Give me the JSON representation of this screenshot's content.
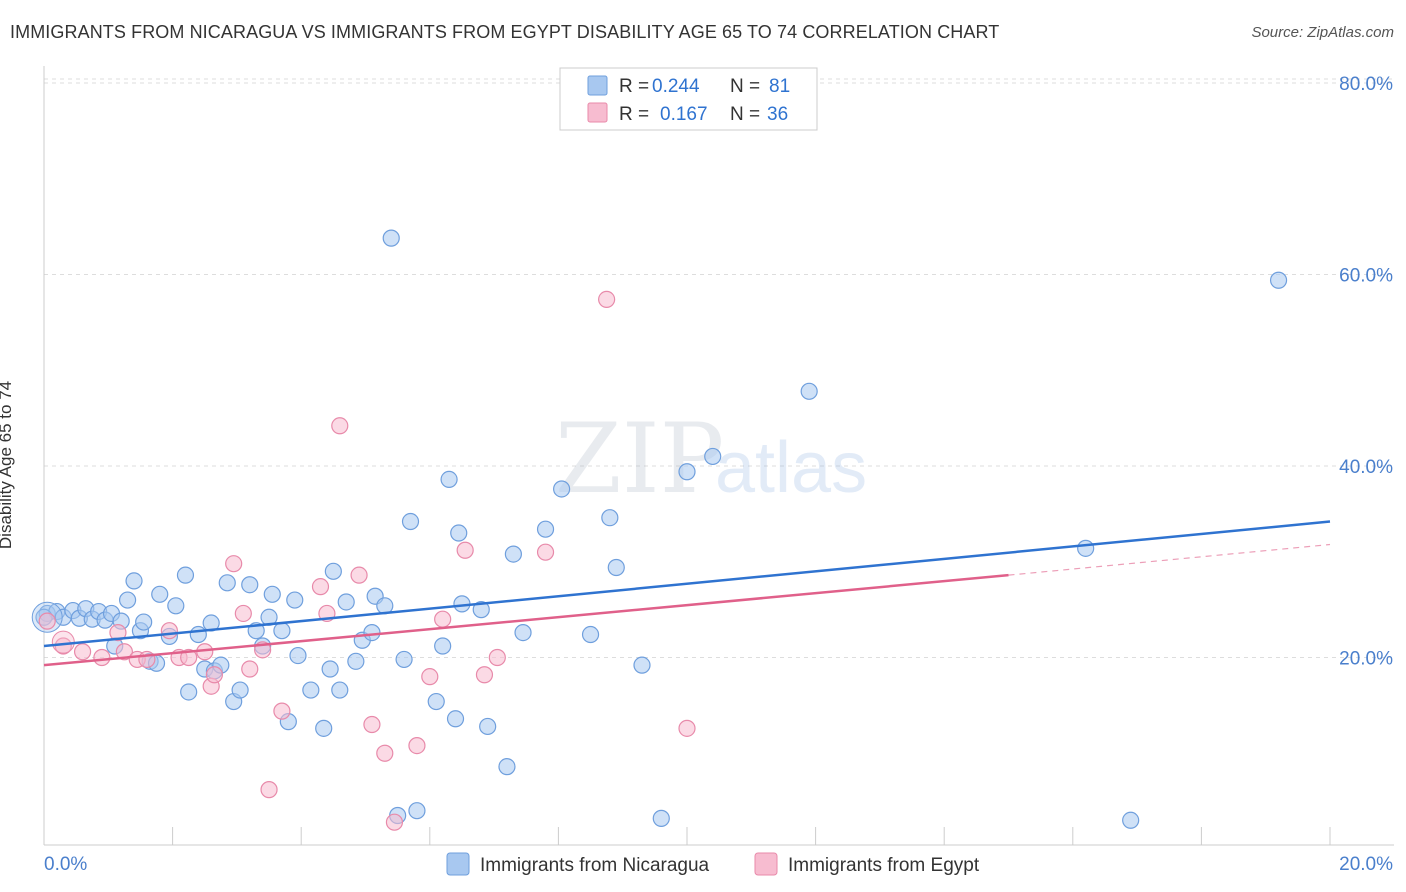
{
  "title": "IMMIGRANTS FROM NICARAGUA VS IMMIGRANTS FROM EGYPT DISABILITY AGE 65 TO 74 CORRELATION CHART",
  "source": "Source: ZipAtlas.com",
  "watermark": {
    "zip": "ZIP",
    "atlas": "atlas"
  },
  "colors": {
    "nicaragua_fill": "#a8c8f0",
    "nicaragua_stroke": "#6f9fdd",
    "nicaragua_line": "#2f73d0",
    "egypt_fill": "#f7bcd0",
    "egypt_stroke": "#e88aaa",
    "egypt_line": "#e0608a",
    "axis_text": "#4a7fcc",
    "grid": "#dddddd"
  },
  "legend": {
    "rows": [
      {
        "r_label": "R =",
        "r_value": "0.244",
        "n_label": "N =",
        "n_value": "81"
      },
      {
        "r_label": "R =",
        "r_value": "0.167",
        "n_label": "N =",
        "n_value": "36"
      }
    ]
  },
  "chart_data": {
    "type": "scatter",
    "title": "IMMIGRANTS FROM NICARAGUA VS IMMIGRANTS FROM EGYPT DISABILITY AGE 65 TO 74 CORRELATION CHART",
    "xlabel": "",
    "ylabel": "Disability Age 65 to 74",
    "xlim": [
      0,
      20
    ],
    "ylim": [
      0,
      80
    ],
    "x_tick_labels": [
      "0.0%",
      "20.0%"
    ],
    "y_ticks": [
      20,
      40,
      60,
      80
    ],
    "y_tick_labels": [
      "20.0%",
      "40.0%",
      "60.0%",
      "80.0%"
    ],
    "legend_position": "top-center",
    "bottom_legend": [
      "Immigrants from Nicaragua",
      "Immigrants from Egypt"
    ],
    "series": [
      {
        "name": "Immigrants from Nicaragua",
        "R": 0.244,
        "N": 81,
        "trend": {
          "x": [
            0,
            20
          ],
          "y": [
            21.2,
            34.2
          ]
        },
        "points": [
          [
            0.05,
            24.6
          ],
          [
            0.2,
            24.8
          ],
          [
            0.3,
            24.2
          ],
          [
            0.45,
            24.9
          ],
          [
            0.55,
            24.1
          ],
          [
            0.65,
            25.1
          ],
          [
            0.75,
            24.0
          ],
          [
            0.85,
            24.8
          ],
          [
            0.95,
            23.9
          ],
          [
            1.05,
            24.6
          ],
          [
            1.1,
            21.2
          ],
          [
            1.2,
            23.8
          ],
          [
            1.3,
            26.0
          ],
          [
            1.4,
            28.0
          ],
          [
            1.5,
            22.8
          ],
          [
            1.55,
            23.7
          ],
          [
            1.65,
            19.6
          ],
          [
            1.75,
            19.4
          ],
          [
            1.8,
            26.6
          ],
          [
            1.95,
            22.2
          ],
          [
            2.05,
            25.4
          ],
          [
            2.2,
            28.6
          ],
          [
            2.25,
            16.4
          ],
          [
            2.4,
            22.4
          ],
          [
            2.5,
            18.8
          ],
          [
            2.6,
            23.6
          ],
          [
            2.65,
            18.6
          ],
          [
            2.75,
            19.2
          ],
          [
            2.85,
            27.8
          ],
          [
            2.95,
            15.4
          ],
          [
            3.05,
            16.6
          ],
          [
            3.2,
            27.6
          ],
          [
            3.3,
            22.8
          ],
          [
            3.4,
            21.2
          ],
          [
            3.5,
            24.2
          ],
          [
            3.55,
            26.6
          ],
          [
            3.7,
            22.8
          ],
          [
            3.8,
            13.3
          ],
          [
            3.9,
            26.0
          ],
          [
            3.95,
            20.2
          ],
          [
            4.15,
            16.6
          ],
          [
            4.35,
            12.6
          ],
          [
            4.45,
            18.8
          ],
          [
            4.5,
            29.0
          ],
          [
            4.6,
            16.6
          ],
          [
            4.7,
            25.8
          ],
          [
            4.85,
            19.6
          ],
          [
            4.95,
            21.8
          ],
          [
            5.1,
            22.6
          ],
          [
            5.15,
            26.4
          ],
          [
            5.3,
            25.4
          ],
          [
            5.4,
            63.8
          ],
          [
            5.5,
            3.5
          ],
          [
            5.6,
            19.8
          ],
          [
            5.7,
            34.2
          ],
          [
            5.8,
            4.0
          ],
          [
            6.1,
            15.4
          ],
          [
            6.2,
            21.2
          ],
          [
            6.3,
            38.6
          ],
          [
            6.4,
            13.6
          ],
          [
            6.45,
            33.0
          ],
          [
            6.5,
            25.6
          ],
          [
            6.8,
            25.0
          ],
          [
            6.9,
            12.8
          ],
          [
            7.2,
            8.6
          ],
          [
            7.3,
            30.8
          ],
          [
            7.45,
            22.6
          ],
          [
            7.8,
            33.4
          ],
          [
            8.05,
            37.6
          ],
          [
            8.5,
            22.4
          ],
          [
            8.8,
            34.6
          ],
          [
            8.9,
            29.4
          ],
          [
            9.3,
            19.2
          ],
          [
            9.6,
            3.2
          ],
          [
            10.0,
            39.4
          ],
          [
            10.4,
            41.0
          ],
          [
            11.9,
            47.8
          ],
          [
            16.2,
            31.4
          ],
          [
            16.9,
            3.0
          ],
          [
            19.2,
            59.4
          ],
          [
            0.0,
            24.2
          ]
        ]
      },
      {
        "name": "Immigrants from Egypt",
        "R": 0.167,
        "N": 36,
        "trend": {
          "x": [
            0,
            15
          ],
          "y": [
            19.2,
            28.6
          ]
        },
        "trend_extension": {
          "x": [
            15,
            20
          ],
          "y": [
            28.6,
            31.8
          ]
        },
        "points": [
          [
            0.05,
            23.8
          ],
          [
            0.3,
            21.2
          ],
          [
            0.6,
            20.6
          ],
          [
            0.9,
            20.0
          ],
          [
            1.15,
            22.6
          ],
          [
            1.25,
            20.6
          ],
          [
            1.45,
            19.8
          ],
          [
            1.6,
            19.8
          ],
          [
            1.95,
            22.8
          ],
          [
            2.1,
            20.0
          ],
          [
            2.25,
            20.0
          ],
          [
            2.5,
            20.6
          ],
          [
            2.6,
            17.0
          ],
          [
            2.65,
            18.2
          ],
          [
            2.95,
            29.8
          ],
          [
            3.1,
            24.6
          ],
          [
            3.2,
            18.8
          ],
          [
            3.4,
            20.8
          ],
          [
            3.5,
            6.2
          ],
          [
            3.7,
            14.4
          ],
          [
            4.3,
            27.4
          ],
          [
            4.4,
            24.6
          ],
          [
            4.6,
            44.2
          ],
          [
            4.9,
            28.6
          ],
          [
            5.1,
            13.0
          ],
          [
            5.3,
            10.0
          ],
          [
            5.45,
            2.8
          ],
          [
            5.8,
            10.8
          ],
          [
            6.0,
            18.0
          ],
          [
            6.2,
            24.0
          ],
          [
            6.55,
            31.2
          ],
          [
            6.85,
            18.2
          ],
          [
            7.05,
            20.0
          ],
          [
            7.8,
            31.0
          ],
          [
            8.75,
            57.4
          ],
          [
            10.0,
            12.6
          ]
        ]
      }
    ]
  }
}
